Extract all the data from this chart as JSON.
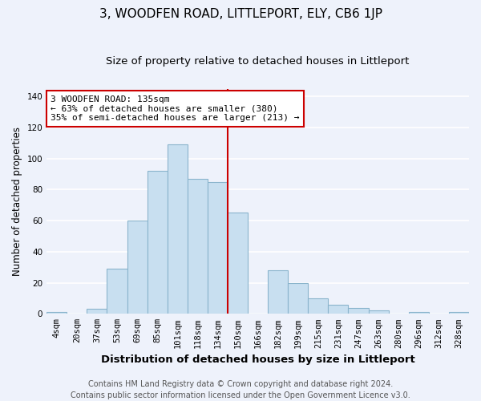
{
  "title": "3, WOODFEN ROAD, LITTLEPORT, ELY, CB6 1JP",
  "subtitle": "Size of property relative to detached houses in Littleport",
  "xlabel": "Distribution of detached houses by size in Littleport",
  "ylabel": "Number of detached properties",
  "bar_color": "#c8dff0",
  "bar_edge_color": "#8ab4cc",
  "categories": [
    "4sqm",
    "20sqm",
    "37sqm",
    "53sqm",
    "69sqm",
    "85sqm",
    "101sqm",
    "118sqm",
    "134sqm",
    "150sqm",
    "166sqm",
    "182sqm",
    "199sqm",
    "215sqm",
    "231sqm",
    "247sqm",
    "263sqm",
    "280sqm",
    "296sqm",
    "312sqm",
    "328sqm"
  ],
  "values": [
    1,
    0,
    3,
    29,
    60,
    92,
    109,
    87,
    85,
    65,
    0,
    28,
    20,
    10,
    6,
    4,
    2,
    0,
    1,
    0,
    1
  ],
  "ylim": [
    0,
    145
  ],
  "yticks": [
    0,
    20,
    40,
    60,
    80,
    100,
    120,
    140
  ],
  "vline_x_index": 8,
  "vline_color": "#cc0000",
  "annotation_title": "3 WOODFEN ROAD: 135sqm",
  "annotation_line1": "← 63% of detached houses are smaller (380)",
  "annotation_line2": "35% of semi-detached houses are larger (213) →",
  "annotation_box_color": "#ffffff",
  "annotation_box_edge_color": "#cc0000",
  "footer_line1": "Contains HM Land Registry data © Crown copyright and database right 2024.",
  "footer_line2": "Contains public sector information licensed under the Open Government Licence v3.0.",
  "background_color": "#eef2fb",
  "grid_color": "#ffffff",
  "title_fontsize": 11,
  "subtitle_fontsize": 9.5,
  "xlabel_fontsize": 9.5,
  "ylabel_fontsize": 8.5,
  "tick_fontsize": 7.5,
  "footer_fontsize": 7
}
